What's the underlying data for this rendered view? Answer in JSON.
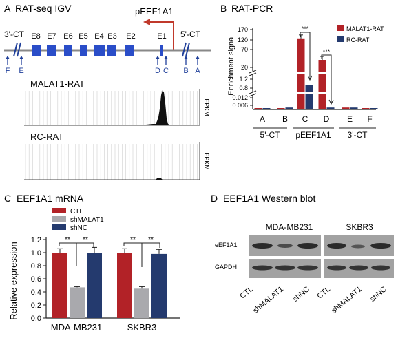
{
  "panelA": {
    "label": "A",
    "title": "RAT-seq IGV",
    "gene_name": "pEEF1A1",
    "end3_label": "3'-CT",
    "end5_label": "5'-CT",
    "exons": [
      "E8",
      "E7",
      "E6",
      "E5",
      "E4",
      "E3",
      "E2",
      "E1"
    ],
    "sites": [
      "F",
      "E",
      "D",
      "C",
      "B",
      "A"
    ],
    "tracks": [
      {
        "name": "MALAT1-RAT",
        "unit": "EPKM"
      },
      {
        "name": "RC-RAT",
        "unit": "EPKM"
      }
    ]
  },
  "panelB": {
    "label": "B",
    "title": "RAT-PCR",
    "ylabel": "Enrichment signal",
    "yticks": [
      "0.006",
      "0.012",
      "0.8",
      "1.2",
      "20",
      "70",
      "120",
      "170"
    ],
    "sig": [
      "***",
      "***"
    ],
    "colors": {
      "malat": "#b22227",
      "rc": "#243a6e"
    },
    "group_labels": [
      "5'-CT",
      "pEEF1A1",
      "3'-CT"
    ],
    "chart_data": {
      "type": "bar",
      "categories": [
        "A",
        "B",
        "C",
        "D",
        "E",
        "F"
      ],
      "groups": [
        {
          "name": "5'-CT",
          "categories": [
            "A",
            "B"
          ]
        },
        {
          "name": "pEEF1A1",
          "categories": [
            "C",
            "D"
          ]
        },
        {
          "name": "3'-CT",
          "categories": [
            "E",
            "F"
          ]
        }
      ],
      "series": [
        {
          "name": "MALAT1-RAT",
          "color": "#b22227",
          "values": [
            0.0005,
            0.001,
            135,
            50,
            0.002,
            0.0005
          ]
        },
        {
          "name": "RC-RAT",
          "color": "#243a6e",
          "values": [
            0.0005,
            0.002,
            0.95,
            0.002,
            0.002,
            0.0005
          ]
        }
      ],
      "yscale": "broken",
      "legend": "top-right"
    }
  },
  "panelC": {
    "label": "C",
    "title": "EEF1A1 mRNA",
    "ylabel": "Relative expression",
    "yticks": [
      "0.0",
      "0.2",
      "0.4",
      "0.6",
      "0.8",
      "1.0",
      "1.2"
    ],
    "sig": [
      "**",
      "**",
      "**",
      "**"
    ],
    "chart_data": {
      "type": "bar",
      "categories": [
        "MDA-MB231",
        "SKBR3"
      ],
      "series": [
        {
          "name": "CTL",
          "color": "#b22227",
          "values": [
            1.0,
            1.0
          ],
          "errors": [
            0.06,
            0.06
          ]
        },
        {
          "name": "shMALAT1",
          "color": "#a9a9ad",
          "values": [
            0.47,
            0.45
          ],
          "errors": [
            0.01,
            0.03
          ]
        },
        {
          "name": "shNC",
          "color": "#243a6e",
          "values": [
            1.0,
            0.98
          ],
          "errors": [
            0.08,
            0.07
          ]
        }
      ],
      "ylim": [
        0,
        1.2
      ],
      "legend": "top-left"
    }
  },
  "panelD": {
    "label": "D",
    "title": "EEF1A1 Western blot",
    "cells": [
      "MDA-MB231",
      "SKBR3"
    ],
    "rows": [
      "eEF1A1",
      "GAPDH"
    ],
    "lanes": [
      "CTL",
      "shMALAT1",
      "shNC"
    ]
  }
}
